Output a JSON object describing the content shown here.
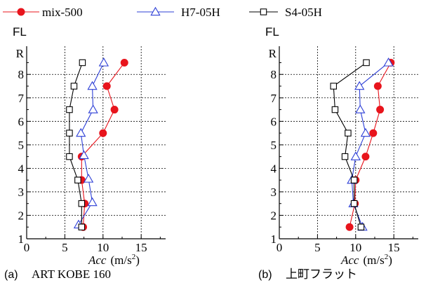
{
  "legend": [
    {
      "series": "mix-500",
      "label": "mix-500",
      "color": "#e8141c",
      "marker": "filled-circle"
    },
    {
      "series": "H7-05H",
      "label": "H7-05H",
      "color": "#2d3fd6",
      "marker": "open-triangle"
    },
    {
      "series": "S4-05H",
      "label": "S4-05H",
      "color": "#000000",
      "marker": "open-square"
    }
  ],
  "chart_data": [
    {
      "type": "line",
      "caption_prefix": "(a)",
      "caption_text": "ART KOBE 160",
      "ylabel": "FL",
      "xlabel_var": "Acc",
      "xlabel_unit": "(m/s",
      "xlabel_sup": "2",
      "xlabel_close": ")",
      "xlim": [
        0,
        17
      ],
      "ylim": [
        1,
        9.2
      ],
      "xticks": [
        0,
        5,
        10,
        15
      ],
      "yticks": [
        1,
        2,
        3,
        4,
        5,
        6,
        7,
        8
      ],
      "ytop_label": "R",
      "grid": true,
      "series": [
        {
          "name": "mix-500",
          "x": [
            7.4,
            7.6,
            7.2,
            7.2,
            10.0,
            11.5,
            10.5,
            12.8
          ],
          "y": [
            1.5,
            2.5,
            3.5,
            4.5,
            5.5,
            6.5,
            7.5,
            8.5
          ]
        },
        {
          "name": "H7-05H",
          "x": [
            6.8,
            8.6,
            8.1,
            7.5,
            7.1,
            8.7,
            8.6,
            10.1
          ],
          "y": [
            1.6,
            2.55,
            3.55,
            4.55,
            5.5,
            6.5,
            7.5,
            8.5
          ]
        },
        {
          "name": "S4-05H",
          "x": [
            7.2,
            7.2,
            6.7,
            5.6,
            5.6,
            5.6,
            6.2,
            7.3
          ],
          "y": [
            1.5,
            2.5,
            3.5,
            4.5,
            5.5,
            6.5,
            7.5,
            8.5
          ]
        }
      ]
    },
    {
      "type": "line",
      "caption_prefix": "(b)",
      "caption_text": "上町フラット",
      "ylabel": "FL",
      "xlabel_var": "Acc",
      "xlabel_unit": "(m/s",
      "xlabel_sup": "2",
      "xlabel_close": ")",
      "xlim": [
        0,
        17
      ],
      "ylim": [
        1,
        9.2
      ],
      "xticks": [
        0,
        5,
        10,
        15
      ],
      "yticks": [
        1,
        2,
        3,
        4,
        5,
        6,
        7,
        8
      ],
      "ytop_label": "R",
      "grid": true,
      "series": [
        {
          "name": "mix-500",
          "x": [
            9.2,
            9.9,
            10.0,
            11.3,
            12.3,
            13.2,
            12.9,
            14.6
          ],
          "y": [
            1.5,
            2.5,
            3.5,
            4.5,
            5.5,
            6.5,
            7.5,
            8.5
          ]
        },
        {
          "name": "H7-05H",
          "x": [
            10.9,
            9.7,
            9.5,
            10.0,
            11.3,
            10.6,
            10.5,
            14.3
          ],
          "y": [
            1.5,
            2.5,
            3.5,
            4.5,
            5.5,
            6.5,
            7.5,
            8.5
          ]
        },
        {
          "name": "S4-05H",
          "x": [
            10.7,
            9.8,
            9.8,
            8.6,
            9.0,
            7.3,
            7.1,
            11.4
          ],
          "y": [
            1.5,
            2.5,
            3.5,
            4.5,
            5.5,
            6.5,
            7.5,
            8.5
          ]
        }
      ]
    }
  ]
}
